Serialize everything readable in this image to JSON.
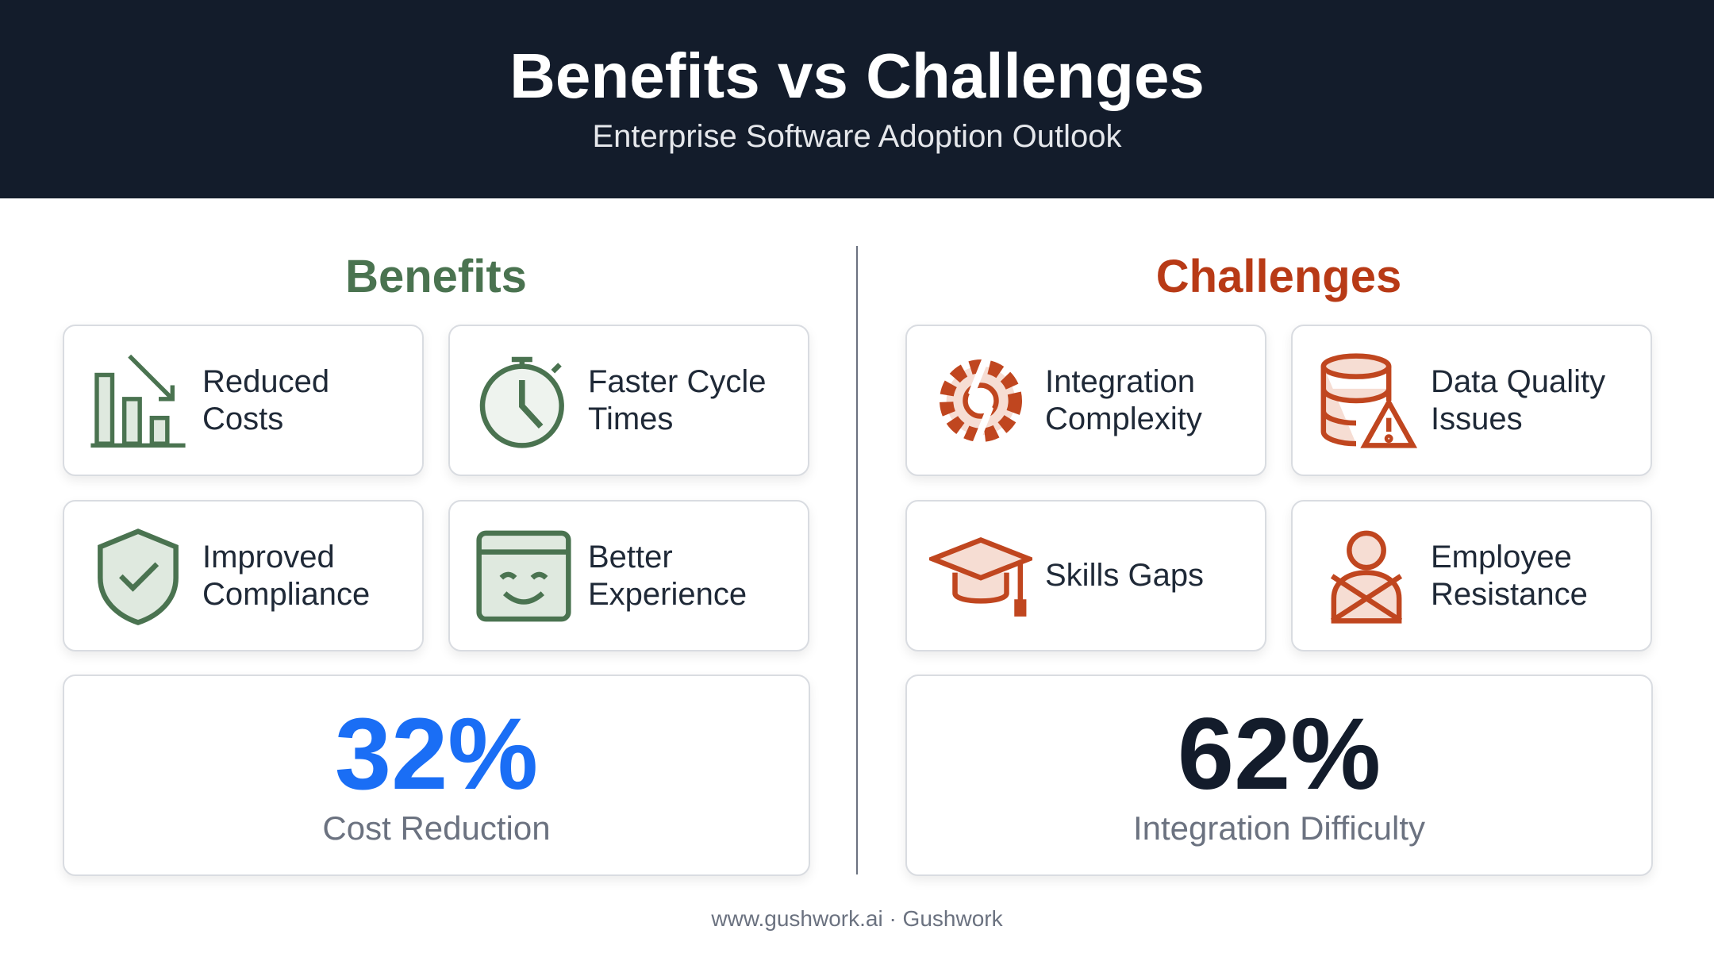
{
  "header": {
    "title": "Benefits vs Challenges",
    "subtitle": "Enterprise Software Adoption Outlook"
  },
  "benefits": {
    "heading": "Benefits",
    "cards": [
      {
        "lines": [
          "Reduced",
          "Costs"
        ]
      },
      {
        "lines": [
          "Faster Cycle",
          "Times"
        ]
      },
      {
        "lines": [
          "Improved",
          "Compliance"
        ]
      },
      {
        "lines": [
          "Better",
          "Experience"
        ]
      }
    ],
    "stat": {
      "value": "32%",
      "label": "Cost Reduction"
    }
  },
  "challenges": {
    "heading": "Challenges",
    "cards": [
      {
        "lines": [
          "Integration",
          "Complexity"
        ]
      },
      {
        "lines": [
          "Data Quality",
          "Issues"
        ]
      },
      {
        "lines": [
          "Skills Gaps"
        ]
      },
      {
        "lines": [
          "Employee",
          "Resistance"
        ]
      }
    ],
    "stat": {
      "value": "62%",
      "label": "Integration Difficulty"
    }
  },
  "footer": "www.gushwork.ai · Gushwork"
}
